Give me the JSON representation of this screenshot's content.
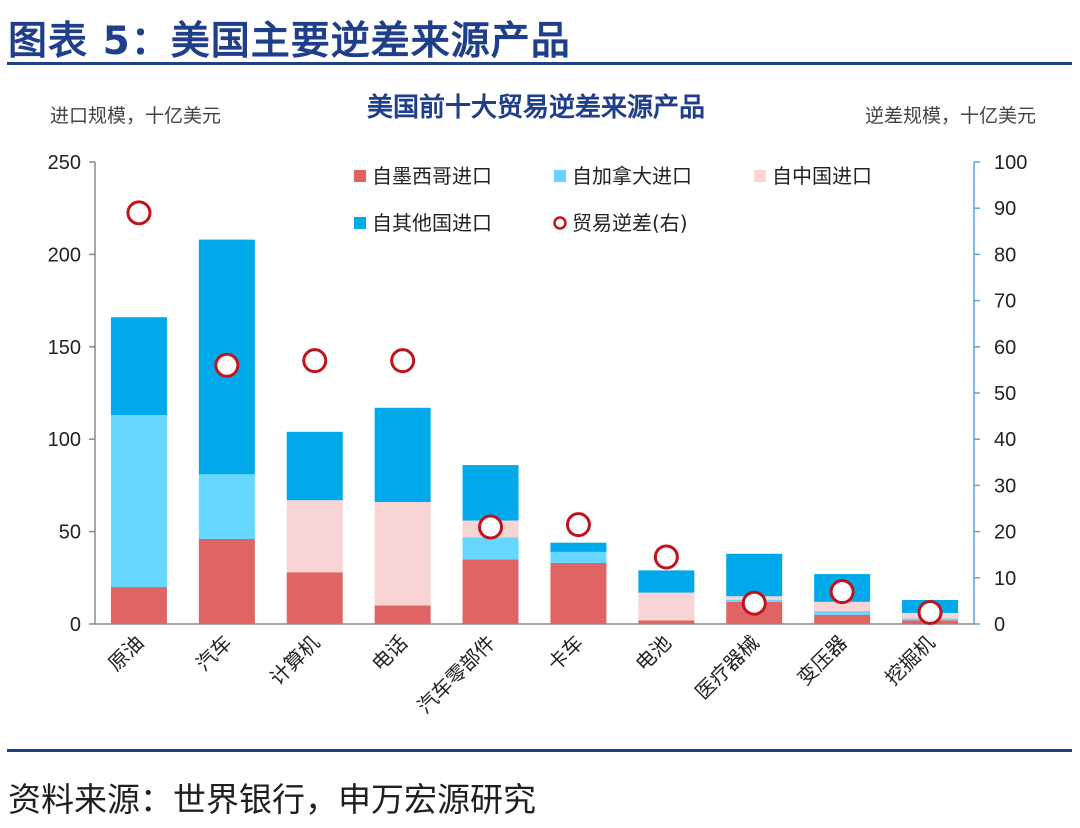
{
  "header": {
    "figure_title": "图表 5：美国主要逆差来源产品"
  },
  "footer": {
    "source": "资料来源：世界银行，申万宏源研究"
  },
  "chart_data": {
    "type": "bar",
    "stacked": true,
    "title": "美国前十大贸易逆差来源产品",
    "ylabel": "进口规模，十亿美元",
    "y2label": "逆差规模，十亿美元",
    "ylim": [
      0,
      250
    ],
    "y2lim": [
      0,
      100
    ],
    "yticks": [
      0,
      50,
      100,
      150,
      200,
      250
    ],
    "y2ticks": [
      0,
      10,
      20,
      30,
      40,
      50,
      60,
      70,
      80,
      90,
      100
    ],
    "legend_placement": "top",
    "categories": [
      "原油",
      "汽车",
      "计算机",
      "电话",
      "汽车零部件",
      "卡车",
      "电池",
      "医疗器械",
      "变压器",
      "挖掘机"
    ],
    "series": [
      {
        "name": "自墨西哥进口",
        "type": "bar",
        "color": "#e06464",
        "values": [
          20,
          46,
          28,
          10,
          35,
          33,
          2,
          12,
          5,
          2
        ]
      },
      {
        "name": "自加拿大进口",
        "type": "bar",
        "color": "#66d8ff",
        "values": [
          93,
          35,
          0,
          0,
          12,
          6,
          0,
          1,
          2,
          1
        ]
      },
      {
        "name": "自中国进口",
        "type": "bar",
        "color": "#f8d4d4",
        "values": [
          0,
          0,
          39,
          56,
          9,
          0,
          15,
          2,
          5,
          3
        ]
      },
      {
        "name": "自其他国进口",
        "type": "bar",
        "color": "#00aaea",
        "values": [
          53,
          127,
          37,
          51,
          30,
          5,
          12,
          23,
          15,
          7
        ]
      },
      {
        "name": "贸易逆差(右)",
        "type": "scatter",
        "axis": "right",
        "color": "#c0141c",
        "values": [
          89,
          56,
          57,
          57,
          21,
          21.5,
          14.5,
          4.5,
          7,
          2.5
        ]
      }
    ]
  }
}
